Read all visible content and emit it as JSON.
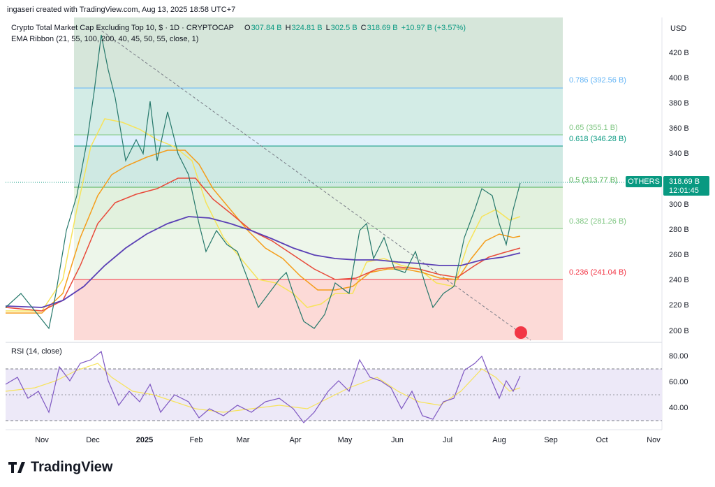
{
  "header": {
    "attribution": "ingaseri created with TradingView.com, Aug 13, 2025 18:58 UTC+7",
    "symbol": "Crypto Total Market Cap Excluding Top 10, $ · 1D · CRYPTOCAP",
    "ohlc": [
      {
        "key": "O",
        "value": "307.84 B"
      },
      {
        "key": "H",
        "value": "324.81 B"
      },
      {
        "key": "L",
        "value": "302.5 B"
      },
      {
        "key": "C",
        "value": "318.69 B"
      }
    ],
    "change": "+10.97 B (+3.57%)",
    "indicator": "EMA Ribbon (21, 55, 100, 200, 40, 45, 50, 55, close, 1)"
  },
  "currency": "USD",
  "price_axis": [
    "420 B",
    "400 B",
    "380 B",
    "360 B",
    "340 B",
    "300 B",
    "280 B",
    "260 B",
    "240 B",
    "220 B",
    "200 B"
  ],
  "fib_levels": [
    "0.786 (392.56 B)",
    "0.65 (355.1 B)",
    "0.618 (346.28 B)",
    "0.5 (313.77 B)",
    "0.382 (281.26 B)",
    "0.236 (241.04 B)"
  ],
  "last_price": {
    "symbol": "OTHERS",
    "price": "318.69 B",
    "countdown": "12:01:45"
  },
  "rsi": {
    "title": "RSI (14, close)",
    "axis": [
      "80.00",
      "60.00",
      "40.00"
    ]
  },
  "time_axis": [
    "Nov",
    "Dec",
    "2025",
    "Feb",
    "Mar",
    "Apr",
    "May",
    "Jun",
    "Jul",
    "Aug",
    "Sep",
    "Oct",
    "Nov"
  ],
  "logo": "TradingView"
}
